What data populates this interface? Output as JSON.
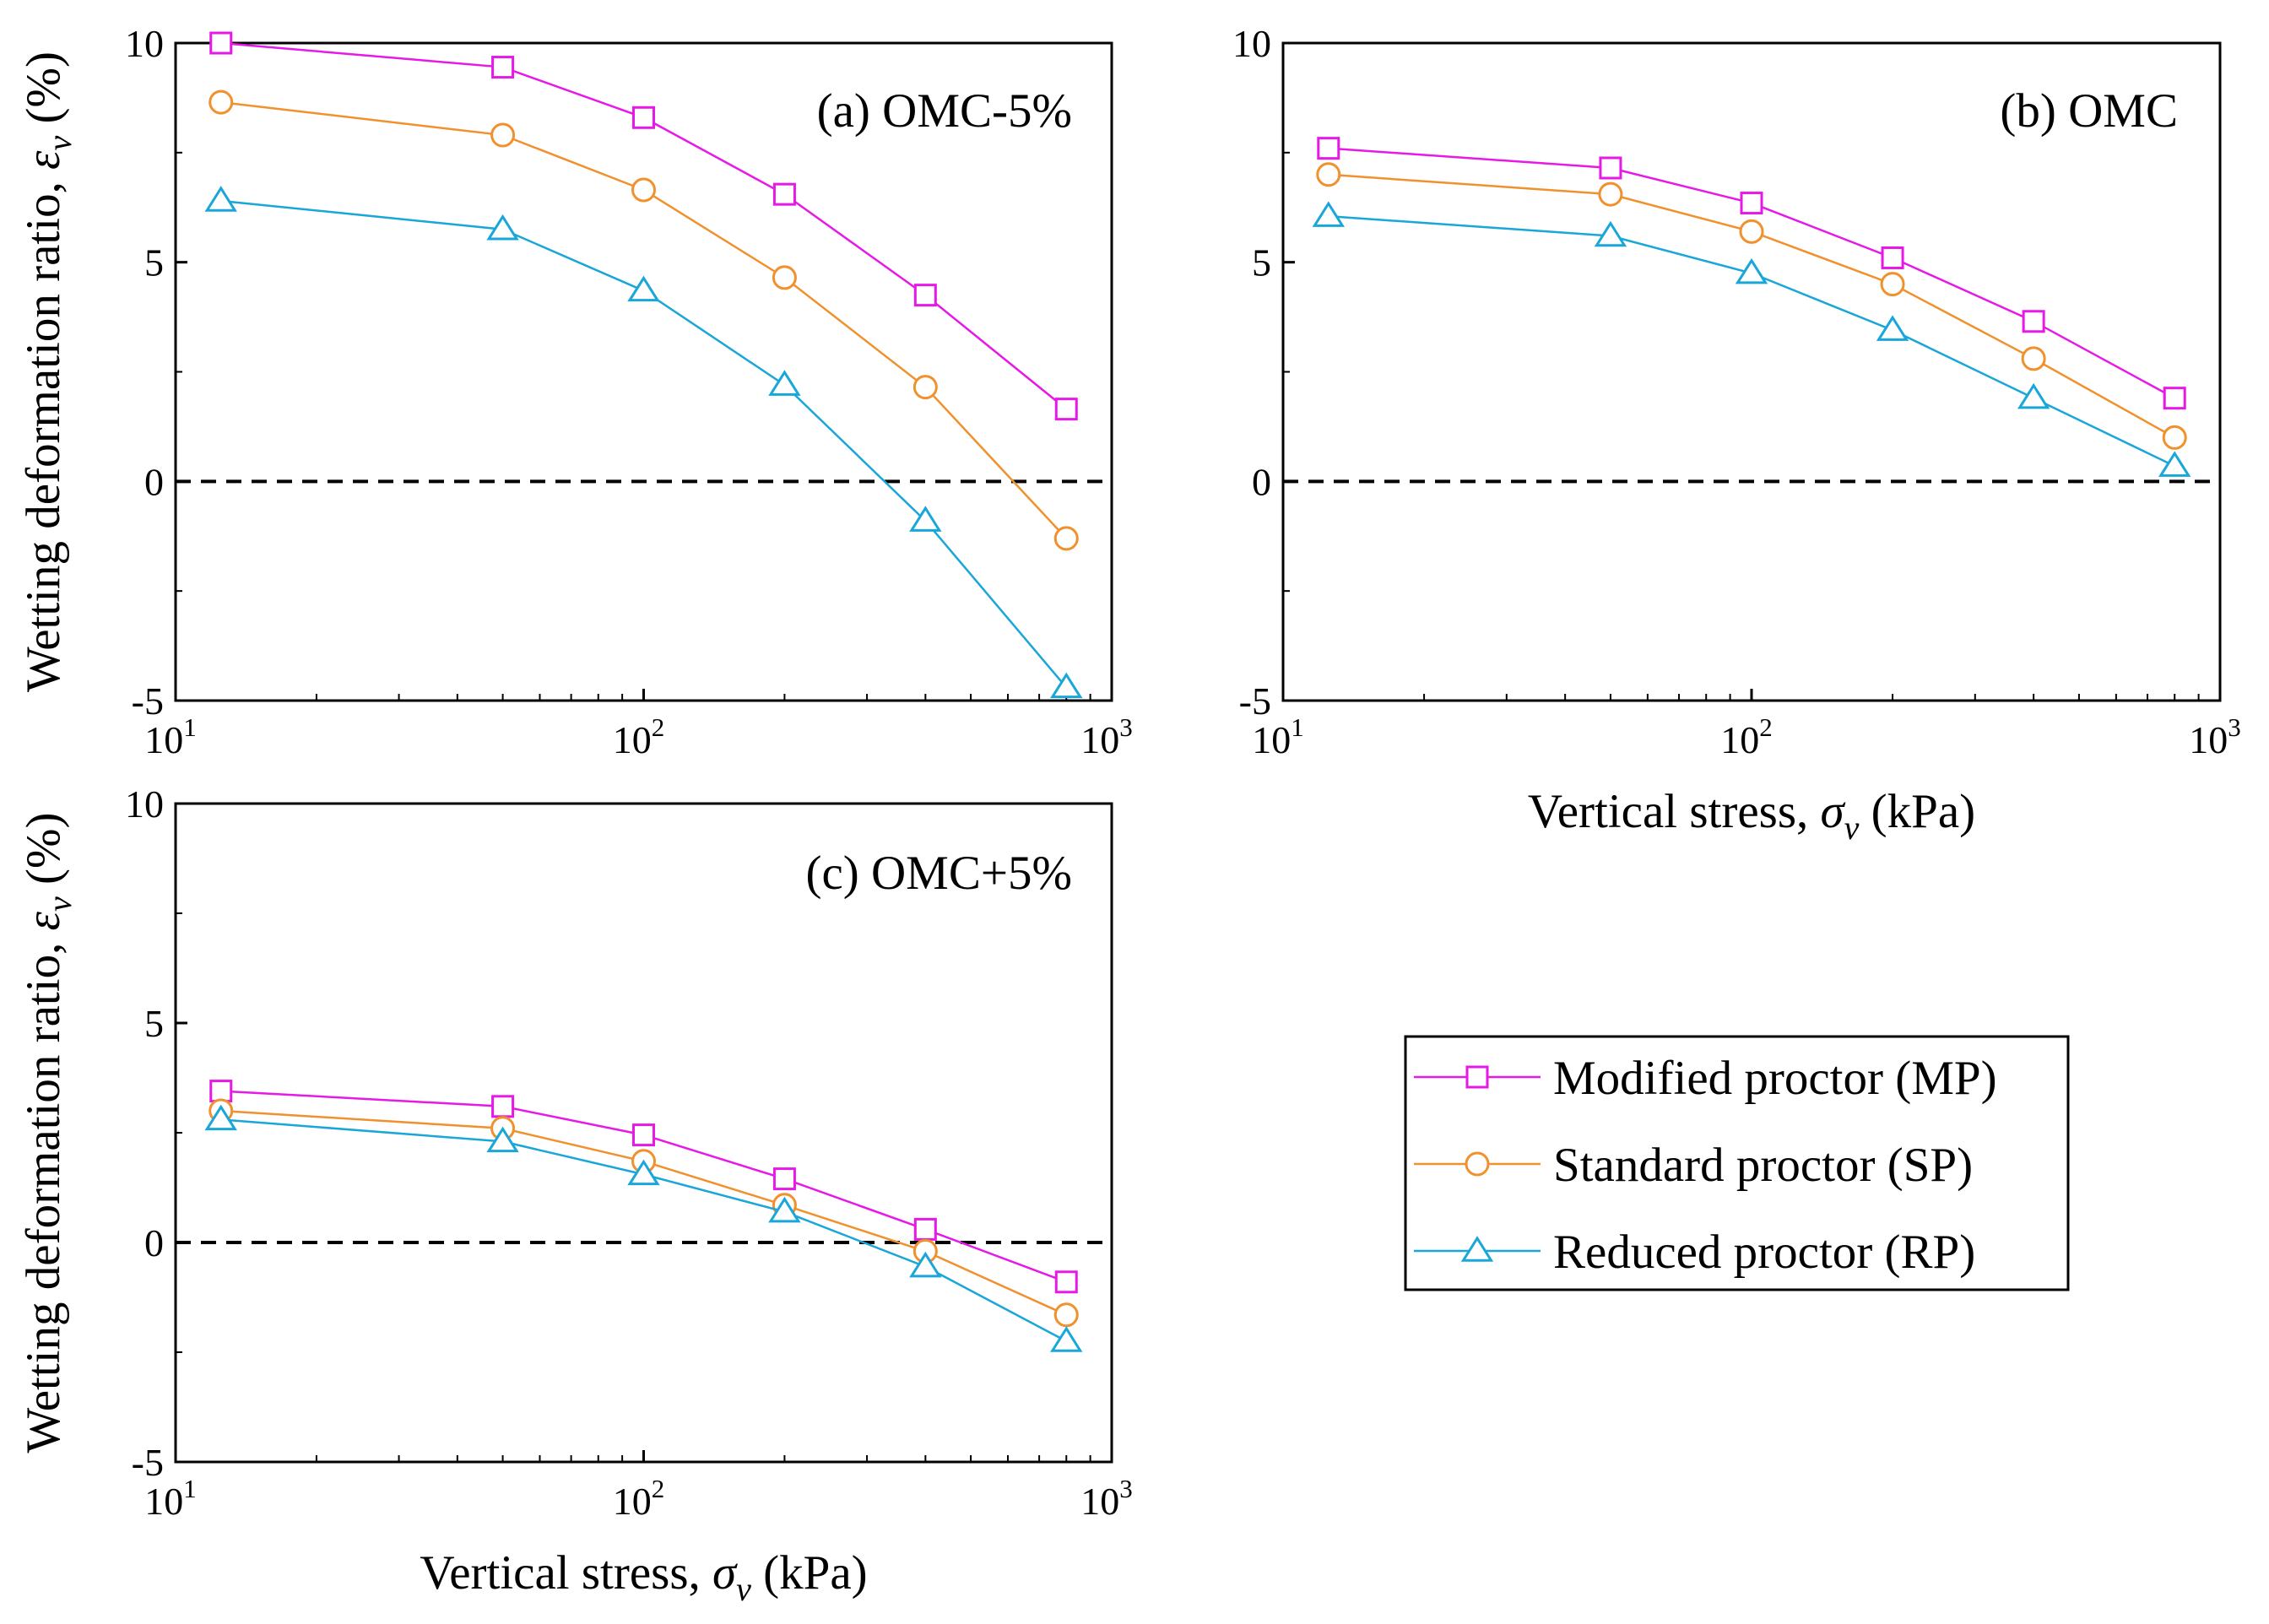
{
  "chart_data": [
    {
      "type": "line",
      "panel_label": "(a) OMC-5%",
      "xscale": "log",
      "xlim": [
        10,
        1000
      ],
      "ylim": [
        -5,
        10
      ],
      "x_ticks": [
        10,
        100,
        1000
      ],
      "x_tick_base": "10",
      "x_tick_exponents": [
        "1",
        "2",
        "3"
      ],
      "y_ticks": [
        "10",
        "5",
        "0",
        "-5"
      ],
      "y_tick_values": [
        10,
        5,
        0,
        -5
      ],
      "ylabel": {
        "text": "Wetting deformation ratio, ",
        "symbol": "ε",
        "subscript": "v",
        "unit": " (%)"
      },
      "xlabel": null,
      "zero_reference": {
        "y": 0,
        "style": "dashed"
      },
      "x": [
        12.5,
        50,
        100,
        200,
        400,
        800
      ],
      "series": [
        {
          "name": "Modified proctor (MP)",
          "values": [
            10.0,
            9.45,
            8.3,
            6.55,
            4.25,
            1.65
          ]
        },
        {
          "name": "Standard proctor (SP)",
          "values": [
            8.65,
            7.9,
            6.65,
            4.65,
            2.15,
            -1.3
          ]
        },
        {
          "name": "Reduced proctor (RP)",
          "values": [
            6.4,
            5.75,
            4.35,
            2.2,
            -0.9,
            -4.7
          ]
        }
      ]
    },
    {
      "type": "line",
      "panel_label": "(b) OMC",
      "xscale": "log",
      "xlim": [
        10,
        1000
      ],
      "ylim": [
        -5,
        10
      ],
      "x_ticks": [
        10,
        100,
        1000
      ],
      "x_tick_base": "10",
      "x_tick_exponents": [
        "1",
        "2",
        "3"
      ],
      "y_ticks": [
        "10",
        "5",
        "0",
        "-5"
      ],
      "y_tick_values": [
        10,
        5,
        0,
        -5
      ],
      "ylabel": null,
      "xlabel": {
        "text": "Vertical stress, ",
        "symbol": "σ",
        "subscript": "v",
        "unit": " (kPa)"
      },
      "zero_reference": {
        "y": 0,
        "style": "dashed"
      },
      "x": [
        12.5,
        50,
        100,
        200,
        400,
        800
      ],
      "series": [
        {
          "name": "Modified proctor (MP)",
          "values": [
            7.6,
            7.15,
            6.35,
            5.1,
            3.65,
            1.9
          ]
        },
        {
          "name": "Standard proctor (SP)",
          "values": [
            7.0,
            6.55,
            5.7,
            4.5,
            2.8,
            1.0
          ]
        },
        {
          "name": "Reduced proctor (RP)",
          "values": [
            6.05,
            5.6,
            4.75,
            3.45,
            1.9,
            0.35
          ]
        }
      ]
    },
    {
      "type": "line",
      "panel_label": "(c) OMC+5%",
      "xscale": "log",
      "xlim": [
        10,
        1000
      ],
      "ylim": [
        -5,
        10
      ],
      "x_ticks": [
        10,
        100,
        1000
      ],
      "x_tick_base": "10",
      "x_tick_exponents": [
        "1",
        "2",
        "3"
      ],
      "y_ticks": [
        "10",
        "5",
        "0",
        "-5"
      ],
      "y_tick_values": [
        10,
        5,
        0,
        -5
      ],
      "ylabel": {
        "text": "Wetting deformation ratio, ",
        "symbol": "ε",
        "subscript": "v",
        "unit": " (%)"
      },
      "xlabel": {
        "text": "Vertical stress, ",
        "symbol": "σ",
        "subscript": "v",
        "unit": " (kPa)"
      },
      "zero_reference": {
        "y": 0,
        "style": "dashed"
      },
      "x": [
        12.5,
        50,
        100,
        200,
        400,
        800
      ],
      "series": [
        {
          "name": "Modified proctor (MP)",
          "values": [
            3.45,
            3.1,
            2.45,
            1.45,
            0.3,
            -0.9
          ]
        },
        {
          "name": "Standard proctor (SP)",
          "values": [
            3.0,
            2.6,
            1.85,
            0.85,
            -0.2,
            -1.65
          ]
        },
        {
          "name": "Reduced proctor (RP)",
          "values": [
            2.8,
            2.3,
            1.55,
            0.7,
            -0.55,
            -2.25
          ]
        }
      ]
    }
  ],
  "legend": {
    "placement": "lower-right",
    "entries": [
      {
        "label": "Modified proctor (MP)",
        "marker": "square",
        "color": "#e619e6"
      },
      {
        "label": "Standard proctor (SP)",
        "marker": "circle",
        "color": "#f0912d"
      },
      {
        "label": "Reduced proctor (RP)",
        "marker": "triangle",
        "color": "#19a6d9"
      }
    ]
  },
  "styles": {
    "series_colors": [
      "#e619e6",
      "#f0912d",
      "#19a6d9"
    ],
    "series_markers": [
      "square",
      "circle",
      "triangle"
    ],
    "axis_color": "#000000",
    "reference_line_color": "#000000"
  }
}
